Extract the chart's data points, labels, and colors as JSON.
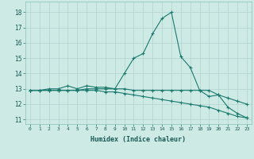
{
  "xlabel": "Humidex (Indice chaleur)",
  "ylabel": "",
  "xlim": [
    -0.5,
    23.5
  ],
  "ylim": [
    10.7,
    18.7
  ],
  "yticks": [
    11,
    12,
    13,
    14,
    15,
    16,
    17,
    18
  ],
  "xticks": [
    0,
    1,
    2,
    3,
    4,
    5,
    6,
    7,
    8,
    9,
    10,
    11,
    12,
    13,
    14,
    15,
    16,
    17,
    18,
    19,
    20,
    21,
    22,
    23
  ],
  "background_color": "#ceeae5",
  "grid_color": "#b0d4ce",
  "line_color": "#1a7a6e",
  "series": [
    [
      12.9,
      12.9,
      13.0,
      13.0,
      13.2,
      13.0,
      13.2,
      13.1,
      13.1,
      13.0,
      14.0,
      15.0,
      15.3,
      16.6,
      17.6,
      18.0,
      15.1,
      14.4,
      12.9,
      12.5,
      12.6,
      11.8,
      11.4,
      11.1
    ],
    [
      12.9,
      12.9,
      12.9,
      12.9,
      12.9,
      12.9,
      13.0,
      13.0,
      13.0,
      13.0,
      13.0,
      12.9,
      12.9,
      12.9,
      12.9,
      12.9,
      12.9,
      12.9,
      12.9,
      12.9,
      12.6,
      12.4,
      12.2,
      12.0
    ],
    [
      12.9,
      12.9,
      12.9,
      12.9,
      12.9,
      12.9,
      12.9,
      12.9,
      12.8,
      12.8,
      12.7,
      12.6,
      12.5,
      12.4,
      12.3,
      12.2,
      12.1,
      12.0,
      11.9,
      11.8,
      11.6,
      11.4,
      11.2,
      11.1
    ]
  ],
  "x": [
    0,
    1,
    2,
    3,
    4,
    5,
    6,
    7,
    8,
    9,
    10,
    11,
    12,
    13,
    14,
    15,
    16,
    17,
    18,
    19,
    20,
    21,
    22,
    23
  ]
}
